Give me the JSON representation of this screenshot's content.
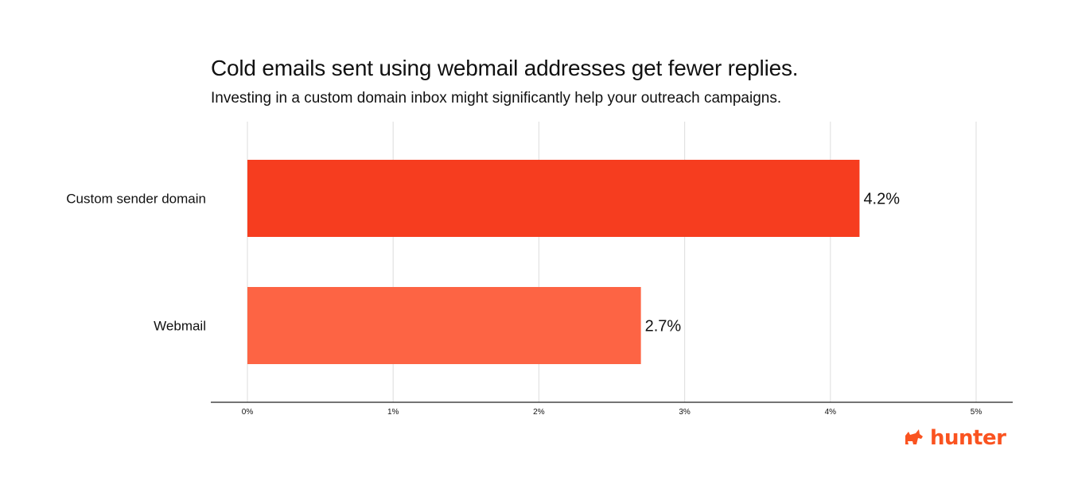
{
  "chart_data": {
    "type": "bar",
    "orientation": "horizontal",
    "title": "Cold emails sent using webmail addresses get fewer replies.",
    "subtitle": "Investing in a custom domain inbox might significantly help your outreach campaigns.",
    "categories": [
      "Custom sender domain",
      "Webmail"
    ],
    "values": [
      4.2,
      2.7
    ],
    "value_labels": [
      "4.2%",
      "2.7%"
    ],
    "bar_colors": [
      "#f63d1f",
      "#fd6444"
    ],
    "xlim": [
      0,
      5
    ],
    "x_ticks": [
      0,
      1,
      2,
      3,
      4,
      5
    ],
    "x_tick_labels": [
      "0%",
      "1%",
      "2%",
      "3%",
      "4%",
      "5%"
    ],
    "grid": true,
    "xlabel": "",
    "ylabel": ""
  },
  "branding": {
    "logo_text": "hunter",
    "logo_icon": "hunter-fox-icon",
    "logo_color": "#fa5320"
  },
  "colors": {
    "grid": "#e2e2e2",
    "axis": "#222222",
    "text": "#111111"
  }
}
